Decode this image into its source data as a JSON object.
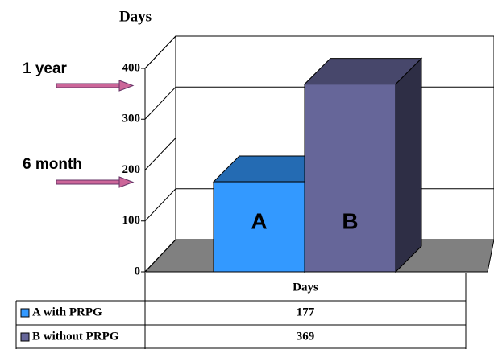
{
  "chart_data": {
    "type": "bar",
    "title": "Days",
    "table_header": "Days",
    "bar_labels": [
      "A",
      "B"
    ],
    "annotations": [
      "1 year",
      "6 month"
    ],
    "series": [
      {
        "name": "A with PRPG",
        "color": "#3399ff",
        "values": [
          177
        ]
      },
      {
        "name": "B without PRPG",
        "color": "#666699",
        "values": [
          369
        ]
      }
    ],
    "ylim": [
      0,
      400
    ],
    "yticks": [
      0,
      100,
      200,
      300,
      400
    ],
    "grid": true
  }
}
